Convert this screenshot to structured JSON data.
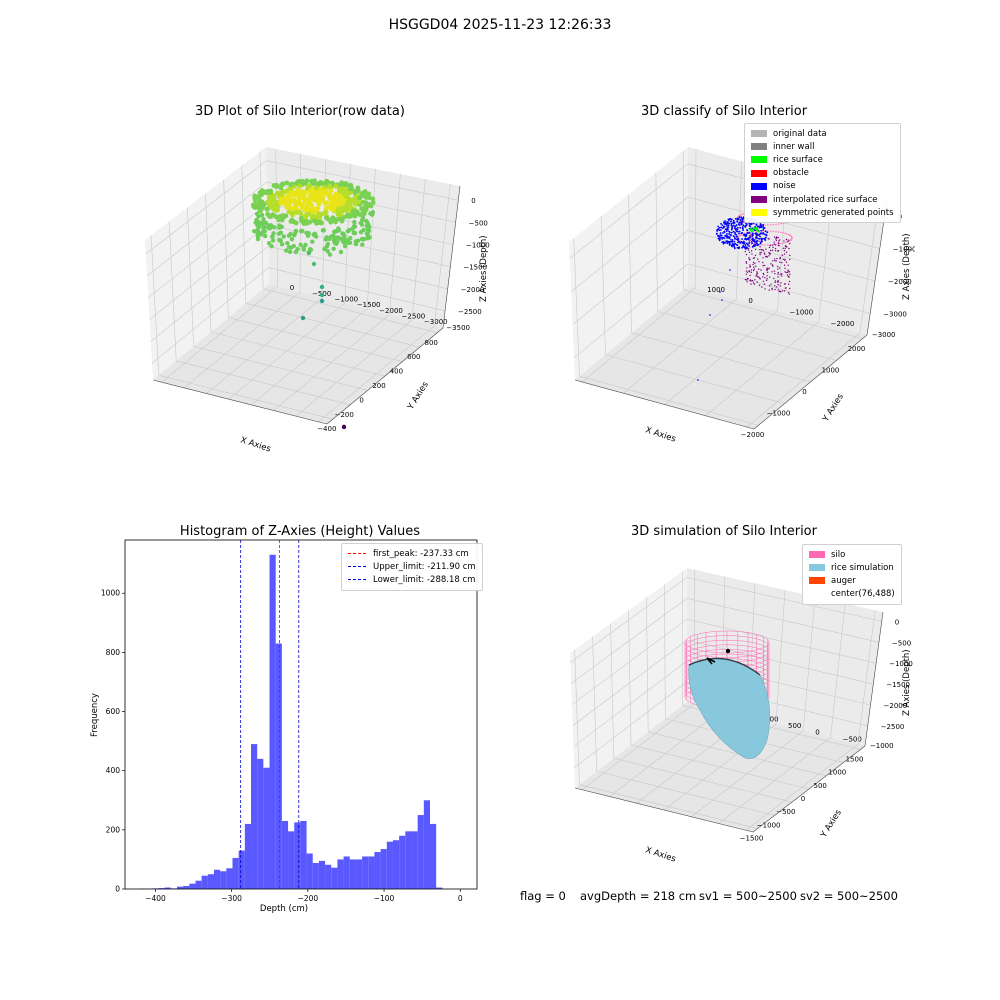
{
  "figure": {
    "suptitle": "HSGGD04 2025-11-23 12:26:33",
    "footer": {
      "flag": "flag = 0",
      "avg_depth": "avgDepth = 218 cm",
      "sv1": "sv1 = 500~2500",
      "sv2": "sv2 = 500~2500"
    }
  },
  "colors": {
    "hist_bar": "#5050ff",
    "peak_line": "#ff0000",
    "limit_line": "#0000cc",
    "silo": "#ff69b4",
    "rice_sim": "#87c8dc",
    "auger": "#ff4500"
  },
  "chart_data": [
    {
      "type": "scatter",
      "title": "3D Plot of Silo Interior(row data)",
      "xlabel": "X Axies",
      "ylabel": "Y Axies",
      "zlabel": "Z Axies (Depth)",
      "x_ticks": [
        "−400",
        "−200",
        "0",
        "200",
        "400",
        "600",
        "800"
      ],
      "y_ticks": [
        "0",
        "−500",
        "−1000",
        "−1500",
        "−2000",
        "−2500",
        "−3000",
        "−3500"
      ],
      "z_ticks": [
        "0",
        "−500",
        "−1000",
        "−1500",
        "−2000",
        "−2500"
      ],
      "colormap": "viridis"
    },
    {
      "type": "scatter",
      "title": "3D classify of Silo Interior",
      "xlabel": "X Axies",
      "ylabel": "Y Axies",
      "zlabel": "Z Axies (Depth)",
      "x_ticks": [
        "−2000",
        "−1000",
        "0",
        "1000",
        "2000"
      ],
      "y_ticks": [
        "1000",
        "0",
        "−1000",
        "−2000",
        "−3000"
      ],
      "z_ticks": [
        "0",
        "−1000",
        "−2000",
        "−3000"
      ],
      "legend_position": "top-right",
      "legend": [
        {
          "label": "original data",
          "color": "#b4b4b4"
        },
        {
          "label": "inner wall",
          "color": "#808080"
        },
        {
          "label": "rice surface",
          "color": "#00ff00"
        },
        {
          "label": "obstacle",
          "color": "#ff0000"
        },
        {
          "label": "noise",
          "color": "#0000ff"
        },
        {
          "label": "interpolated rice surface",
          "color": "#800080"
        },
        {
          "label": "symmetric generated points",
          "color": "#ffff00"
        }
      ]
    },
    {
      "type": "bar",
      "title": "Histogram of Z-Axies (Height) Values",
      "xlabel": "Depth (cm)",
      "ylabel": "Frequency",
      "xlim": [
        -440,
        22
      ],
      "ylim": [
        0,
        1180
      ],
      "x_ticks": [
        -400,
        -300,
        -200,
        -100,
        0
      ],
      "x_tick_labels": [
        "−400",
        "−300",
        "−200",
        "−100",
        "0"
      ],
      "y_ticks": [
        0,
        200,
        400,
        600,
        800,
        1000
      ],
      "bin_width": 8.1,
      "bin_starts": [
        -420.4,
        -412.3,
        -404.2,
        -396.1,
        -388.0,
        -379.9,
        -371.8,
        -363.7,
        -355.6,
        -347.5,
        -339.4,
        -331.3,
        -323.2,
        -315.1,
        -307.0,
        -298.9,
        -290.8,
        -282.7,
        -274.6,
        -266.5,
        -258.4,
        -250.3,
        -242.2,
        -234.1,
        -226.0,
        -217.9,
        -209.8,
        -201.7,
        -193.6,
        -185.5,
        -177.4,
        -169.3,
        -161.2,
        -153.1,
        -145.0,
        -136.9,
        -128.8,
        -120.7,
        -112.6,
        -104.5,
        -96.4,
        -88.3,
        -80.2,
        -72.1,
        -64.0,
        -55.9,
        -47.8,
        -39.7,
        -31.6,
        -23.5,
        -15.4,
        -7.3
      ],
      "values": [
        1,
        1,
        2,
        3,
        5,
        2,
        8,
        10,
        18,
        28,
        45,
        50,
        65,
        60,
        70,
        105,
        130,
        220,
        490,
        440,
        410,
        1130,
        830,
        230,
        195,
        225,
        230,
        120,
        88,
        95,
        82,
        72,
        100,
        110,
        100,
        100,
        110,
        110,
        125,
        135,
        160,
        165,
        180,
        195,
        195,
        250,
        300,
        220,
        5,
        0,
        0,
        0
      ],
      "vlines": [
        {
          "x": -237.33,
          "label": "first_peak: -237.33 cm",
          "color": "#ff0000"
        },
        {
          "x": -211.9,
          "label": "Upper_limit: -211.90 cm",
          "color": "#0000cc"
        },
        {
          "x": -288.18,
          "label": "Lower_limit: -288.18 cm",
          "color": "#0000cc"
        }
      ],
      "legend_position": "top-right"
    },
    {
      "type": "scatter",
      "title": "3D simulation of Silo Interior",
      "xlabel": "X Axies",
      "ylabel": "Y Axies",
      "zlabel": "Z Axies (Depth)",
      "x_ticks": [
        "−1500",
        "−1000",
        "−500",
        "0",
        "500",
        "1000",
        "1500"
      ],
      "y_ticks": [
        "2000",
        "1500",
        "1000",
        "500",
        "0",
        "−500",
        "−1000"
      ],
      "z_ticks": [
        "0",
        "−500",
        "−1000",
        "−1500",
        "−2000",
        "−2500"
      ],
      "legend_position": "top-right",
      "legend": [
        {
          "label": "silo",
          "color": "#ff69b4"
        },
        {
          "label": "rice simulation",
          "color": "#87c8dc"
        },
        {
          "label": "auger",
          "color": "#ff4500"
        },
        {
          "label": "center(76,488)",
          "color": "#ffffff"
        }
      ]
    }
  ]
}
